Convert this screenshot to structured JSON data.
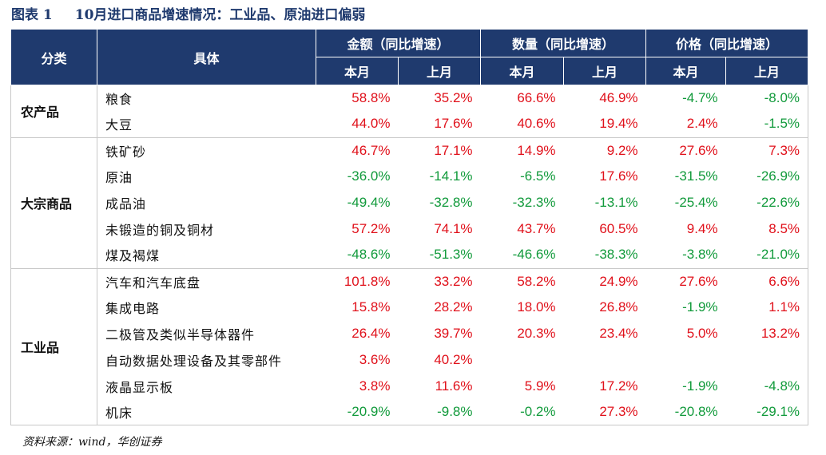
{
  "title": {
    "prefix": "图表 1",
    "text": "10月进口商品增速情况：工业品、原油进口偏弱"
  },
  "headers": {
    "category": "分类",
    "item": "具体",
    "groups": [
      "金额（同比增速）",
      "数量（同比增速）",
      "价格（同比增速）"
    ],
    "sub": [
      "本月",
      "上月",
      "本月",
      "上月",
      "本月",
      "上月"
    ]
  },
  "colors": {
    "header_bg": "#1f3a6e",
    "positive": "#e0101a",
    "negative": "#119a3b"
  },
  "groups": [
    {
      "category": "农产品",
      "rows": [
        {
          "item": "粮食",
          "values": [
            "58.8%",
            "35.2%",
            "66.6%",
            "46.9%",
            "-4.7%",
            "-8.0%"
          ]
        },
        {
          "item": "大豆",
          "values": [
            "44.0%",
            "17.6%",
            "40.6%",
            "19.4%",
            "2.4%",
            "-1.5%"
          ]
        }
      ]
    },
    {
      "category": "大宗商品",
      "rows": [
        {
          "item": "铁矿砂",
          "values": [
            "46.7%",
            "17.1%",
            "14.9%",
            "9.2%",
            "27.6%",
            "7.3%"
          ]
        },
        {
          "item": "原油",
          "values": [
            "-36.0%",
            "-14.1%",
            "-6.5%",
            "17.6%",
            "-31.5%",
            "-26.9%"
          ]
        },
        {
          "item": "成品油",
          "values": [
            "-49.4%",
            "-32.8%",
            "-32.3%",
            "-13.1%",
            "-25.4%",
            "-22.6%"
          ]
        },
        {
          "item": "未锻造的铜及铜材",
          "values": [
            "57.2%",
            "74.1%",
            "43.7%",
            "60.5%",
            "9.4%",
            "8.5%"
          ]
        },
        {
          "item": "煤及褐煤",
          "values": [
            "-48.6%",
            "-51.3%",
            "-46.6%",
            "-38.3%",
            "-3.8%",
            "-21.0%"
          ]
        }
      ]
    },
    {
      "category": "工业品",
      "rows": [
        {
          "item": "汽车和汽车底盘",
          "values": [
            "101.8%",
            "33.2%",
            "58.2%",
            "24.9%",
            "27.6%",
            "6.6%"
          ]
        },
        {
          "item": "集成电路",
          "values": [
            "15.8%",
            "28.2%",
            "18.0%",
            "26.8%",
            "-1.9%",
            "1.1%"
          ]
        },
        {
          "item": "二极管及类似半导体器件",
          "values": [
            "26.4%",
            "39.7%",
            "20.3%",
            "23.4%",
            "5.0%",
            "13.2%"
          ]
        },
        {
          "item": "自动数据处理设备及其零部件",
          "values": [
            "3.6%",
            "40.2%",
            "",
            "",
            "",
            ""
          ]
        },
        {
          "item": "液晶显示板",
          "values": [
            "3.8%",
            "11.6%",
            "5.9%",
            "17.2%",
            "-1.9%",
            "-4.8%"
          ]
        },
        {
          "item": "机床",
          "values": [
            "-20.9%",
            "-9.8%",
            "-0.2%",
            "27.3%",
            "-20.8%",
            "-29.1%"
          ]
        }
      ]
    }
  ],
  "source": "资料来源：wind，华创证券"
}
